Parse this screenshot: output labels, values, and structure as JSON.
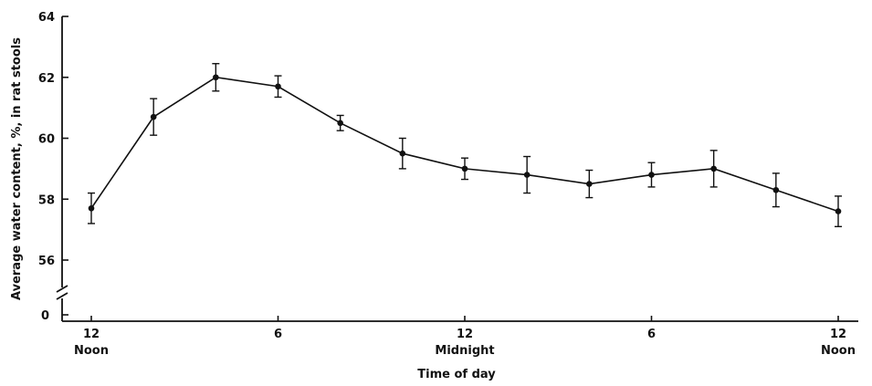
{
  "chart_data": {
    "type": "line",
    "xlabel": "Time of day",
    "ylabel": "Average water content, %, in rat stools",
    "ylim": [
      56,
      64
    ],
    "y_axis_break": true,
    "y_break_label": "0",
    "yticks": [
      56,
      58,
      60,
      62,
      64
    ],
    "xlim": [
      0,
      24
    ],
    "xticks": [
      {
        "x": 0,
        "line1": "12",
        "line2": "Noon"
      },
      {
        "x": 6,
        "line1": "6",
        "line2": ""
      },
      {
        "x": 12,
        "line1": "12",
        "line2": "Midnight"
      },
      {
        "x": 18,
        "line1": "6",
        "line2": ""
      },
      {
        "x": 24,
        "line1": "12",
        "line2": "Noon"
      }
    ],
    "grid": false,
    "series": [
      {
        "x": [
          0,
          2,
          4,
          6,
          8,
          10,
          12,
          14,
          16,
          18,
          20,
          22,
          24
        ],
        "y": [
          57.7,
          60.7,
          62.0,
          61.7,
          60.5,
          59.5,
          59.0,
          58.8,
          58.5,
          58.8,
          59.0,
          58.3,
          57.6
        ],
        "err": [
          0.5,
          0.6,
          0.45,
          0.35,
          0.25,
          0.5,
          0.35,
          0.6,
          0.45,
          0.4,
          0.6,
          0.55,
          0.5
        ]
      }
    ]
  }
}
